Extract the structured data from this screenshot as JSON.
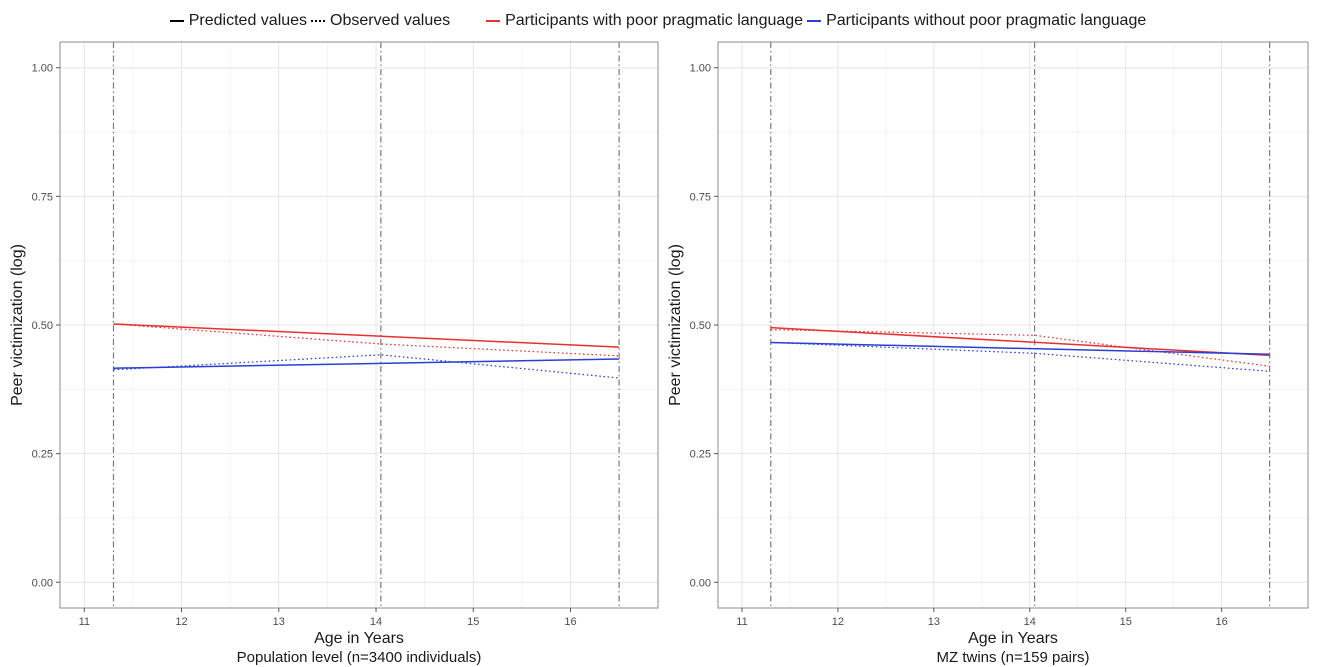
{
  "legend": {
    "linetype_items": [
      {
        "label": "Predicted values",
        "style": "solid",
        "color": "#000000"
      },
      {
        "label": "Observed values",
        "style": "dotted",
        "color": "#000000"
      }
    ],
    "color_items": [
      {
        "label": "Participants with poor pragmatic language",
        "color": "#e8312f"
      },
      {
        "label": "Participants without poor pragmatic language",
        "color": "#2a3fd6"
      }
    ]
  },
  "chart_data": [
    {
      "type": "line",
      "xlabel": "Age in Years",
      "caption": "Population level (n=3400 individuals)",
      "ylabel": "Peer victimization (log)",
      "xlim": [
        10.75,
        16.9
      ],
      "ylim": [
        -0.05,
        1.05
      ],
      "x_ticks": [
        11,
        12,
        13,
        14,
        15,
        16
      ],
      "y_ticks": [
        "0.00",
        "0.25",
        "0.50",
        "0.75",
        "1.00"
      ],
      "grid": true,
      "vlines": [
        11.3,
        14.05,
        16.5
      ],
      "series": [
        {
          "name": "Participants with poor pragmatic language",
          "kind": "Predicted values",
          "color": "#e8312f",
          "x": [
            11.3,
            16.5
          ],
          "y": [
            0.502,
            0.457
          ]
        },
        {
          "name": "Participants with poor pragmatic language",
          "kind": "Observed values",
          "color": "#e8312f",
          "x": [
            11.3,
            14.05,
            16.5
          ],
          "y": [
            0.502,
            0.463,
            0.44
          ]
        },
        {
          "name": "Participants without poor pragmatic language",
          "kind": "Predicted values",
          "color": "#2a3fd6",
          "x": [
            11.3,
            16.5
          ],
          "y": [
            0.416,
            0.434
          ]
        },
        {
          "name": "Participants without poor pragmatic language",
          "kind": "Observed values",
          "color": "#2a3fd6",
          "x": [
            11.3,
            14.05,
            16.5
          ],
          "y": [
            0.413,
            0.442,
            0.397
          ]
        }
      ]
    },
    {
      "type": "line",
      "xlabel": "Age in Years",
      "caption": "MZ twins (n=159 pairs)",
      "ylabel": "Peer victimization (log)",
      "xlim": [
        10.75,
        16.9
      ],
      "ylim": [
        -0.05,
        1.05
      ],
      "x_ticks": [
        11,
        12,
        13,
        14,
        15,
        16
      ],
      "y_ticks": [
        "0.00",
        "0.25",
        "0.50",
        "0.75",
        "1.00"
      ],
      "grid": true,
      "vlines": [
        11.3,
        14.05,
        16.5
      ],
      "series": [
        {
          "name": "Participants with poor pragmatic language",
          "kind": "Predicted values",
          "color": "#e8312f",
          "x": [
            11.3,
            16.5
          ],
          "y": [
            0.495,
            0.441
          ]
        },
        {
          "name": "Participants with poor pragmatic language",
          "kind": "Observed values",
          "color": "#e8312f",
          "x": [
            11.3,
            14.05,
            16.5
          ],
          "y": [
            0.491,
            0.48,
            0.42
          ]
        },
        {
          "name": "Participants without poor pragmatic language",
          "kind": "Predicted values",
          "color": "#2a3fd6",
          "x": [
            11.3,
            16.5
          ],
          "y": [
            0.466,
            0.443
          ]
        },
        {
          "name": "Participants without poor pragmatic language",
          "kind": "Observed values",
          "color": "#2a3fd6",
          "x": [
            11.3,
            14.05,
            16.5
          ],
          "y": [
            0.466,
            0.445,
            0.41
          ]
        }
      ]
    }
  ]
}
